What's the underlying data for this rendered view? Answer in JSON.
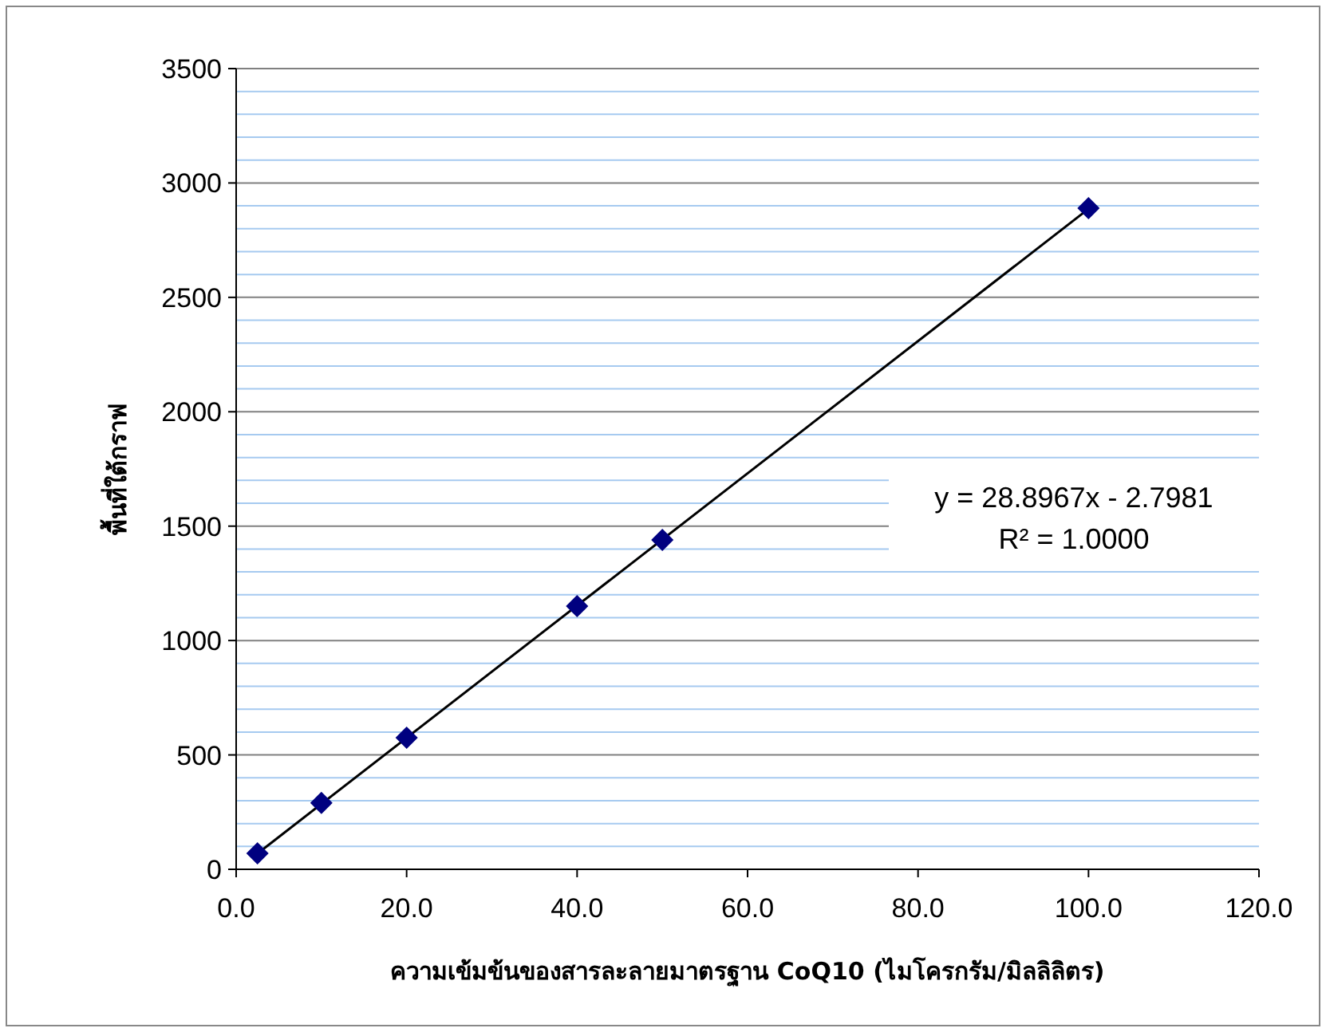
{
  "chart_data": {
    "type": "scatter",
    "xlabel": "ความเข้มข้นของสารละลายมาตรฐาน CoQ10 (ไมโครกรัม/มิลลิลิตร)",
    "ylabel": "พื้นที่ใต้กราฟ",
    "series": [
      {
        "color": "#000080",
        "marker": "diamond",
        "x": [
          2.5,
          10,
          20,
          40,
          50,
          100
        ],
        "values": [
          70,
          290,
          575,
          1150,
          1440,
          2890
        ]
      },
      {
        "type": "line",
        "color": "#000000",
        "marker": "none",
        "line_style": "solid",
        "x": [
          2.5,
          100
        ],
        "values": [
          69,
          2887
        ]
      }
    ],
    "xlim": [
      0,
      120
    ],
    "xticks": [
      {
        "value": 0,
        "label": "0.0"
      },
      {
        "value": 20,
        "label": "20.0"
      },
      {
        "value": 40,
        "label": "40.0"
      },
      {
        "value": 60,
        "label": "60.0"
      },
      {
        "value": 80,
        "label": "80.0"
      },
      {
        "value": 100,
        "label": "100.0"
      },
      {
        "value": 120,
        "label": "120.0"
      }
    ],
    "ylim": [
      0,
      3500
    ],
    "yticks": [
      0,
      {
        "value": 100,
        "label": null
      },
      {
        "value": 200,
        "label": null
      },
      {
        "value": 300,
        "label": null
      },
      {
        "value": 400,
        "label": null
      },
      500,
      {
        "value": 600,
        "label": null
      },
      {
        "value": 700,
        "label": null
      },
      {
        "value": 800,
        "label": null
      },
      {
        "value": 900,
        "label": null
      },
      1000,
      {
        "value": 1100,
        "label": null
      },
      {
        "value": 1200,
        "label": null
      },
      {
        "value": 1300,
        "label": null
      },
      {
        "value": 1400,
        "label": null
      },
      1500,
      {
        "value": 1600,
        "label": null
      },
      {
        "value": 1700,
        "label": null
      },
      {
        "value": 1800,
        "label": null
      },
      {
        "value": 1900,
        "label": null
      },
      2000,
      {
        "value": 2100,
        "label": null
      },
      {
        "value": 2200,
        "label": null
      },
      {
        "value": 2300,
        "label": null
      },
      {
        "value": 2400,
        "label": null
      },
      2500,
      {
        "value": 2600,
        "label": null
      },
      {
        "value": 2700,
        "label": null
      },
      {
        "value": 2800,
        "label": null
      },
      {
        "value": 2900,
        "label": null
      },
      3000,
      {
        "value": 3100,
        "label": null
      },
      {
        "value": 3200,
        "label": null
      },
      {
        "value": 3300,
        "label": null
      },
      {
        "value": 3400,
        "label": null
      },
      3500
    ],
    "grid": "y",
    "annotations": [
      "y = 28.8967x - 2.7981",
      "R² = 1.0000"
    ]
  }
}
